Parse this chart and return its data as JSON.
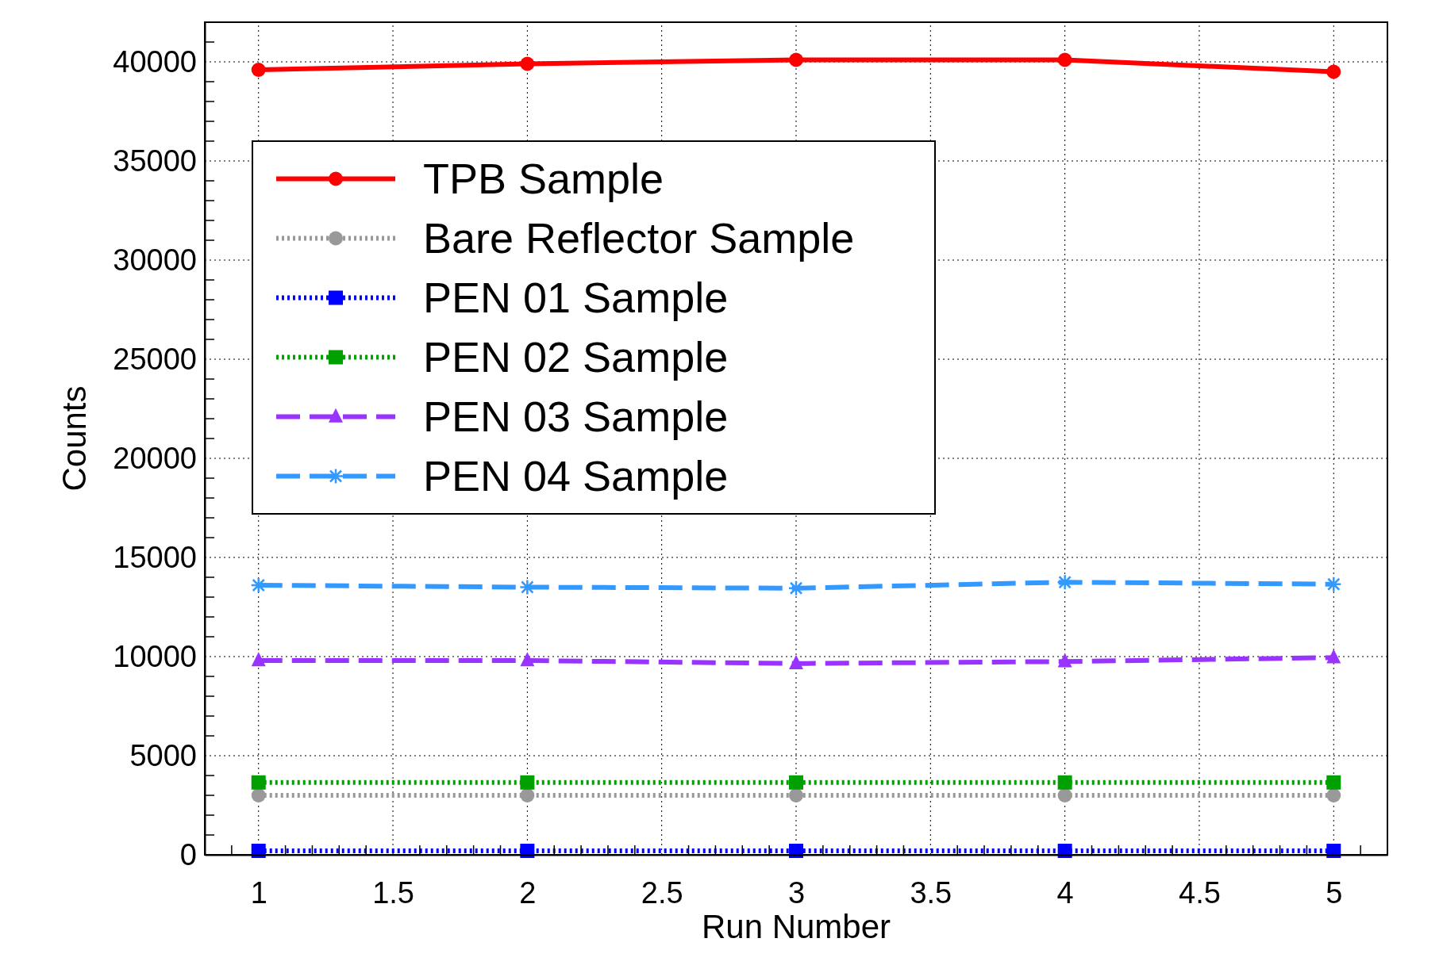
{
  "chart_data": {
    "type": "line",
    "xlabel": "Run Number",
    "ylabel": "Counts",
    "xlim": [
      0.8,
      5.2
    ],
    "ylim": [
      0,
      42000
    ],
    "xticks": [
      1,
      1.5,
      2,
      2.5,
      3,
      3.5,
      4,
      4.5,
      5
    ],
    "yticks": [
      0,
      5000,
      10000,
      15000,
      20000,
      25000,
      30000,
      35000,
      40000
    ],
    "x": [
      1,
      2,
      3,
      4,
      5
    ],
    "grid": true,
    "legend": "top left",
    "series": [
      {
        "name": "TPB Sample",
        "color": "#ff0000",
        "marker": "circle",
        "line_style": "solid",
        "values": [
          39600,
          39900,
          40100,
          40100,
          39500
        ]
      },
      {
        "name": "Bare Reflector Sample",
        "color": "#999999",
        "marker": "circle",
        "line_style": "dotted",
        "values": [
          3000,
          3000,
          3000,
          3000,
          3000
        ]
      },
      {
        "name": "PEN 01 Sample",
        "color": "#0000ff",
        "marker": "square",
        "line_style": "dotted",
        "values": [
          200,
          200,
          200,
          200,
          200
        ]
      },
      {
        "name": "PEN 02 Sample",
        "color": "#00a000",
        "marker": "square",
        "line_style": "dotted",
        "values": [
          3650,
          3650,
          3650,
          3650,
          3650
        ]
      },
      {
        "name": "PEN 03 Sample",
        "color": "#9933ff",
        "marker": "triangle",
        "line_style": "dashed",
        "values": [
          9800,
          9800,
          9650,
          9750,
          9950
        ]
      },
      {
        "name": "PEN 04 Sample",
        "color": "#3399ff",
        "marker": "cross",
        "line_style": "dashed",
        "values": [
          13600,
          13500,
          13450,
          13750,
          13650
        ]
      }
    ]
  }
}
